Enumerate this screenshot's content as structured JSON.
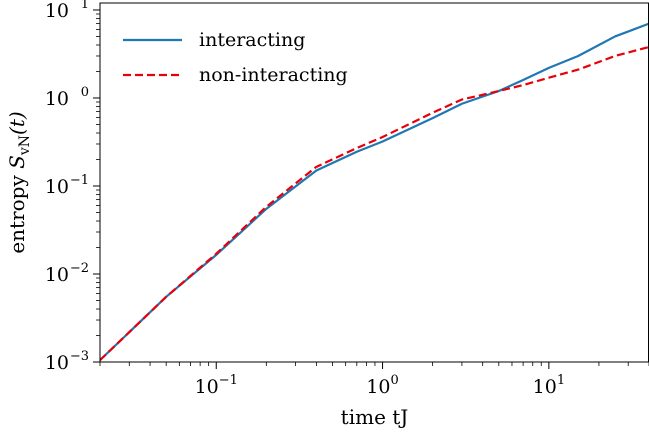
{
  "chart_data": {
    "type": "line",
    "xscale": "log",
    "yscale": "log",
    "xlim": [
      0.02,
      40
    ],
    "ylim": [
      0.001,
      12
    ],
    "xlabel": "time tJ",
    "ylabel": {
      "prefix": "entropy ",
      "symbol": "S",
      "subscript": "vN",
      "suffix": "(t)"
    },
    "xticks": [
      {
        "value": 0.1,
        "base": "10",
        "exp": "−1"
      },
      {
        "value": 1,
        "base": "10",
        "exp": "0"
      },
      {
        "value": 10,
        "base": "10",
        "exp": "1"
      }
    ],
    "yticks": [
      {
        "value": 0.001,
        "base": "10",
        "exp": "−3"
      },
      {
        "value": 0.01,
        "base": "10",
        "exp": "−2"
      },
      {
        "value": 0.1,
        "base": "10",
        "exp": "−1"
      },
      {
        "value": 1,
        "base": "10",
        "exp": "0"
      },
      {
        "value": 10,
        "base": "10",
        "exp": "1"
      }
    ],
    "grid": false,
    "legend_position": "upper-left",
    "series": [
      {
        "name": "interacting",
        "color": "#1f77b4",
        "style": "solid",
        "points": [
          [
            0.02,
            0.00105
          ],
          [
            0.05,
            0.0055
          ],
          [
            0.1,
            0.0165
          ],
          [
            0.2,
            0.055
          ],
          [
            0.4,
            0.15
          ],
          [
            0.7,
            0.245
          ],
          [
            1.0,
            0.32
          ],
          [
            2.0,
            0.59
          ],
          [
            3.0,
            0.86
          ],
          [
            5.0,
            1.2
          ],
          [
            7.0,
            1.6
          ],
          [
            10.0,
            2.2
          ],
          [
            15.0,
            3.0
          ],
          [
            25.0,
            5.0
          ],
          [
            40.0,
            7.0
          ]
        ]
      },
      {
        "name": "non-interacting",
        "color": "#e8000b",
        "style": "dashed",
        "points": [
          [
            0.02,
            0.00105
          ],
          [
            0.05,
            0.0055
          ],
          [
            0.1,
            0.017
          ],
          [
            0.2,
            0.058
          ],
          [
            0.4,
            0.165
          ],
          [
            0.7,
            0.27
          ],
          [
            1.0,
            0.36
          ],
          [
            2.0,
            0.68
          ],
          [
            3.0,
            0.96
          ],
          [
            5.0,
            1.2
          ],
          [
            7.0,
            1.4
          ],
          [
            10.0,
            1.7
          ],
          [
            15.0,
            2.1
          ],
          [
            25.0,
            3.0
          ],
          [
            40.0,
            3.8
          ]
        ]
      }
    ]
  }
}
